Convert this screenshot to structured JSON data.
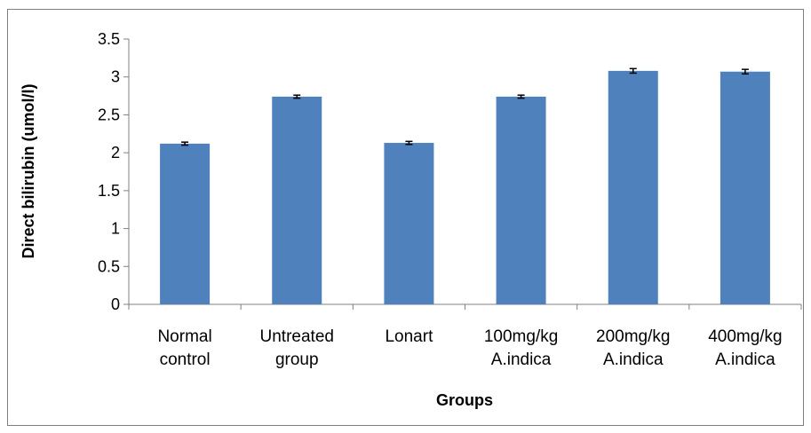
{
  "chart_data": {
    "type": "bar",
    "categories": [
      [
        "Normal",
        "control"
      ],
      [
        "Untreated",
        "group"
      ],
      [
        "Lonart"
      ],
      [
        "100mg/kg",
        "A.indica"
      ],
      [
        "200mg/kg",
        "A.indica"
      ],
      [
        "400mg/kg",
        "A.indica"
      ]
    ],
    "values": [
      2.12,
      2.74,
      2.13,
      2.74,
      3.08,
      3.07
    ],
    "errors": [
      0.02,
      0.02,
      0.02,
      0.02,
      0.03,
      0.03
    ],
    "yticks": [
      "0",
      "0.5",
      "1",
      "1.5",
      "2",
      "2.5",
      "3",
      "3.5"
    ],
    "ylim": [
      0,
      3.5
    ],
    "ylabel": "Direct bilirubin (umol/l)",
    "xlabel": "Groups",
    "bar_color": "#4f81bd",
    "grid": false,
    "legend": "none"
  }
}
